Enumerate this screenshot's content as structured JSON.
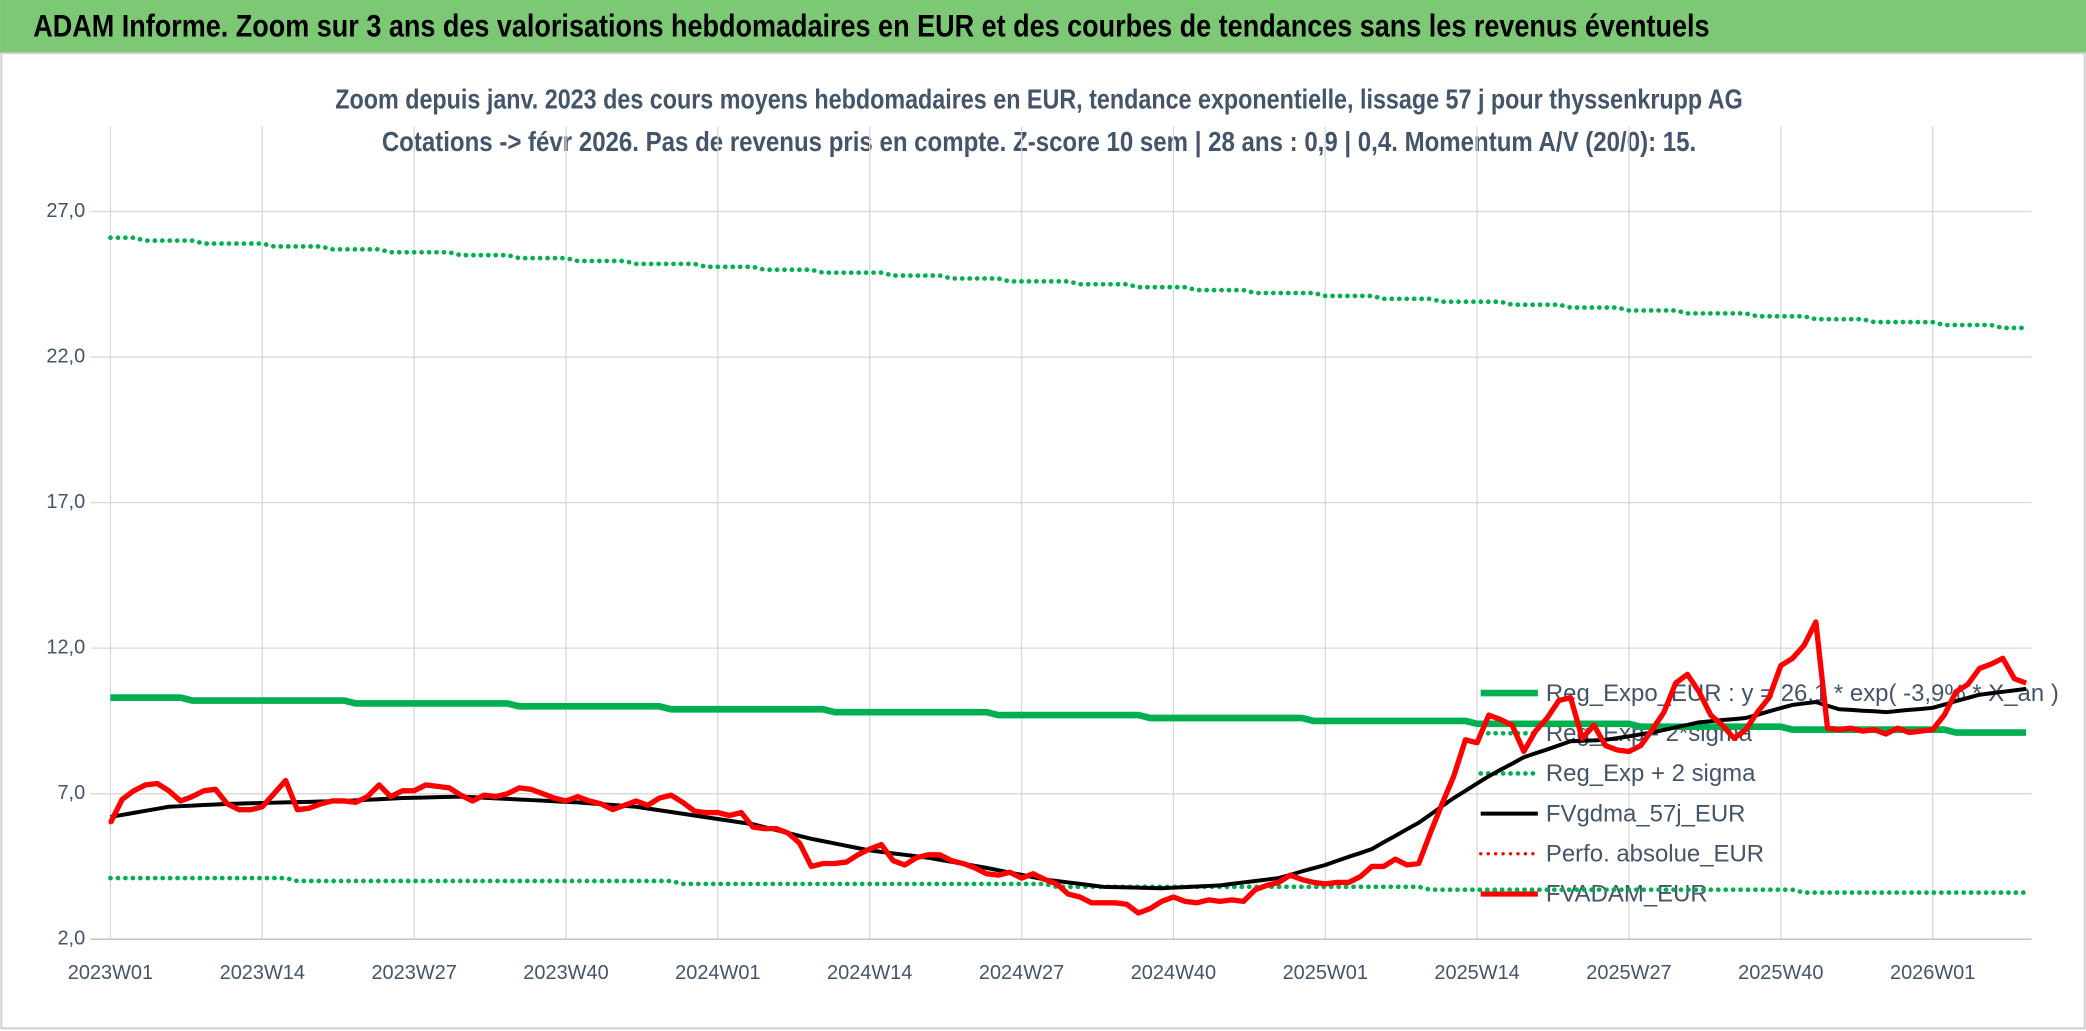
{
  "chart_data": {
    "type": "line",
    "title": "ADAM Informe. Zoom sur 3 ans des valorisations hebdomadaires en EUR et des courbes de tendances sans les revenus éventuels",
    "subtitle": [
      "Zoom depuis janv. 2023 des cours moyens hebdomadaires en EUR, tendance exponentielle, lissage 57 j pour thyssenkrupp AG",
      "Cotations -> févr 2026. Pas de revenus pris en compte. Z-score 10 sem | 28 ans : 0,9 | 0,4. Momentum A/V (20/0): 15."
    ],
    "categories": [
      "2023W01",
      null,
      null,
      null,
      null,
      null,
      null,
      null,
      null,
      null,
      null,
      null,
      null,
      "2023W14",
      null,
      null,
      null,
      null,
      null,
      null,
      null,
      null,
      null,
      null,
      null,
      null,
      "2023W27",
      null,
      null,
      null,
      null,
      null,
      null,
      null,
      null,
      null,
      null,
      null,
      null,
      "2023W40",
      null,
      null,
      null,
      null,
      null,
      null,
      null,
      null,
      null,
      null,
      null,
      null,
      "2024W01",
      null,
      null,
      null,
      null,
      null,
      null,
      null,
      null,
      null,
      null,
      null,
      null,
      "2024W14",
      null,
      null,
      null,
      null,
      null,
      null,
      null,
      null,
      null,
      null,
      null,
      null,
      "2024W27",
      null,
      null,
      null,
      null,
      null,
      null,
      null,
      null,
      null,
      null,
      null,
      null,
      "2024W40",
      null,
      null,
      null,
      null,
      null,
      null,
      null,
      null,
      null,
      null,
      null,
      null,
      "2025W01",
      null,
      null,
      null,
      null,
      null,
      null,
      null,
      null,
      null,
      null,
      null,
      null,
      "2025W14",
      null,
      null,
      null,
      null,
      null,
      null,
      null,
      null,
      null,
      null,
      null,
      null,
      "2025W27",
      null,
      null,
      null,
      null,
      null,
      null,
      null,
      null,
      null,
      null,
      null,
      null,
      "2025W40",
      null,
      null,
      null,
      null,
      null,
      null,
      null,
      null,
      null,
      null,
      null,
      null,
      "2026W01",
      null,
      null,
      null,
      null,
      null,
      null,
      null,
      null
    ],
    "ylim": [
      2,
      29
    ],
    "yticks": [
      {
        "value": 2,
        "label": "2,0"
      },
      {
        "value": 7,
        "label": "7,0"
      },
      {
        "value": 12,
        "label": "12,0"
      },
      {
        "value": 17,
        "label": "17,0"
      },
      {
        "value": 22,
        "label": "22,0"
      },
      {
        "value": 27,
        "label": "27,0"
      }
    ],
    "grid": true,
    "legend": "right",
    "series": [
      {
        "name": "Reg_Expo_EUR : y = 26,1 * exp( -3,9% * X_an )",
        "color": "#00b050",
        "style": "solid",
        "values": [
          10.3,
          10.3,
          10.3,
          10.3,
          10.3,
          10.3,
          10.3,
          10.2,
          10.2,
          10.2,
          10.2,
          10.2,
          10.2,
          10.2,
          10.2,
          10.2,
          10.2,
          10.2,
          10.2,
          10.2,
          10.2,
          10.1,
          10.1,
          10.1,
          10.1,
          10.1,
          10.1,
          10.1,
          10.1,
          10.1,
          10.1,
          10.1,
          10.1,
          10.1,
          10.1,
          10,
          10,
          10,
          10,
          10,
          10,
          10,
          10,
          10,
          10,
          10,
          10,
          10,
          9.9,
          9.9,
          9.9,
          9.9,
          9.9,
          9.9,
          9.9,
          9.9,
          9.9,
          9.9,
          9.9,
          9.9,
          9.9,
          9.9,
          9.8,
          9.8,
          9.8,
          9.8,
          9.8,
          9.8,
          9.8,
          9.8,
          9.8,
          9.8,
          9.8,
          9.8,
          9.8,
          9.8,
          9.7,
          9.7,
          9.7,
          9.7,
          9.7,
          9.7,
          9.7,
          9.7,
          9.7,
          9.7,
          9.7,
          9.7,
          9.7,
          9.6,
          9.6,
          9.6,
          9.6,
          9.6,
          9.6,
          9.6,
          9.6,
          9.6,
          9.6,
          9.6,
          9.6,
          9.6,
          9.6,
          9.5,
          9.5,
          9.5,
          9.5,
          9.5,
          9.5,
          9.5,
          9.5,
          9.5,
          9.5,
          9.5,
          9.5,
          9.5,
          9.5,
          9.4,
          9.4,
          9.4,
          9.4,
          9.4,
          9.4,
          9.4,
          9.4,
          9.4,
          9.4,
          9.4,
          9.4,
          9.4,
          9.4,
          9.3,
          9.3,
          9.3,
          9.3,
          9.3,
          9.3,
          9.3,
          9.3,
          9.3,
          9.3,
          9.3,
          9.3,
          9.3,
          9.2,
          9.2,
          9.2,
          9.2,
          9.2,
          9.2,
          9.2,
          9.2,
          9.2,
          9.2,
          9.2,
          9.2,
          9.2,
          9.2,
          9.1,
          9.1,
          9.1,
          9.1,
          9.1,
          9.1,
          9.1
        ]
      },
      {
        "name": "Reg_Exp - 2*sigma",
        "color": "#00b050",
        "style": "dotted",
        "values": [
          4.1,
          4.1,
          4.1,
          4.1,
          4.1,
          4.1,
          4.1,
          4.1,
          4.1,
          4.1,
          4.1,
          4.1,
          4.1,
          4.1,
          4.1,
          4.1,
          4,
          4,
          4,
          4,
          4,
          4,
          4,
          4,
          4,
          4,
          4,
          4,
          4,
          4,
          4,
          4,
          4,
          4,
          4,
          4,
          4,
          4,
          4,
          4,
          4,
          4,
          4,
          4,
          4,
          4,
          4,
          4,
          4,
          3.9,
          3.9,
          3.9,
          3.9,
          3.9,
          3.9,
          3.9,
          3.9,
          3.9,
          3.9,
          3.9,
          3.9,
          3.9,
          3.9,
          3.9,
          3.9,
          3.9,
          3.9,
          3.9,
          3.9,
          3.9,
          3.9,
          3.9,
          3.9,
          3.9,
          3.9,
          3.9,
          3.9,
          3.9,
          3.9,
          3.9,
          3.9,
          3.8,
          3.8,
          3.8,
          3.8,
          3.8,
          3.8,
          3.8,
          3.8,
          3.8,
          3.8,
          3.8,
          3.8,
          3.8,
          3.8,
          3.8,
          3.8,
          3.8,
          3.8,
          3.8,
          3.8,
          3.8,
          3.8,
          3.8,
          3.8,
          3.8,
          3.8,
          3.8,
          3.8,
          3.8,
          3.8,
          3.8,
          3.8,
          3.7,
          3.7,
          3.7,
          3.7,
          3.7,
          3.7,
          3.7,
          3.7,
          3.7,
          3.7,
          3.7,
          3.7,
          3.7,
          3.7,
          3.7,
          3.7,
          3.7,
          3.7,
          3.7,
          3.7,
          3.7,
          3.7,
          3.7,
          3.7,
          3.7,
          3.7,
          3.7,
          3.7,
          3.7,
          3.7,
          3.7,
          3.7,
          3.6,
          3.6,
          3.6,
          3.6,
          3.6,
          3.6,
          3.6,
          3.6,
          3.6,
          3.6,
          3.6,
          3.6,
          3.6,
          3.6,
          3.6,
          3.6,
          3.6,
          3.6,
          3.6,
          3.6
        ]
      },
      {
        "name": "Reg_Exp + 2 sigma",
        "color": "#00b050",
        "style": "dotted",
        "values": [
          26.1,
          26.1,
          26.1,
          26,
          26,
          26,
          26,
          26,
          25.9,
          25.9,
          25.9,
          25.9,
          25.9,
          25.9,
          25.8,
          25.8,
          25.8,
          25.8,
          25.8,
          25.7,
          25.7,
          25.7,
          25.7,
          25.7,
          25.6,
          25.6,
          25.6,
          25.6,
          25.6,
          25.6,
          25.5,
          25.5,
          25.5,
          25.5,
          25.5,
          25.4,
          25.4,
          25.4,
          25.4,
          25.4,
          25.3,
          25.3,
          25.3,
          25.3,
          25.3,
          25.2,
          25.2,
          25.2,
          25.2,
          25.2,
          25.2,
          25.1,
          25.1,
          25.1,
          25.1,
          25.1,
          25,
          25,
          25,
          25,
          25,
          24.9,
          24.9,
          24.9,
          24.9,
          24.9,
          24.9,
          24.8,
          24.8,
          24.8,
          24.8,
          24.8,
          24.7,
          24.7,
          24.7,
          24.7,
          24.7,
          24.6,
          24.6,
          24.6,
          24.6,
          24.6,
          24.6,
          24.5,
          24.5,
          24.5,
          24.5,
          24.5,
          24.4,
          24.4,
          24.4,
          24.4,
          24.4,
          24.3,
          24.3,
          24.3,
          24.3,
          24.3,
          24.2,
          24.2,
          24.2,
          24.2,
          24.2,
          24.2,
          24.1,
          24.1,
          24.1,
          24.1,
          24.1,
          24,
          24,
          24,
          24,
          24,
          23.9,
          23.9,
          23.9,
          23.9,
          23.9,
          23.9,
          23.8,
          23.8,
          23.8,
          23.8,
          23.8,
          23.7,
          23.7,
          23.7,
          23.7,
          23.7,
          23.6,
          23.6,
          23.6,
          23.6,
          23.6,
          23.5,
          23.5,
          23.5,
          23.5,
          23.5,
          23.5,
          23.4,
          23.4,
          23.4,
          23.4,
          23.4,
          23.3,
          23.3,
          23.3,
          23.3,
          23.3,
          23.2,
          23.2,
          23.2,
          23.2,
          23.2,
          23.2,
          23.1,
          23.1,
          23.1,
          23.1,
          23.1,
          23,
          23,
          23
        ]
      },
      {
        "name": "FVgdma_57j_EUR",
        "color": "#000000",
        "style": "solid",
        "values": [
          6.2,
          6.27,
          6.34,
          6.41,
          6.48,
          6.55,
          6.57,
          6.59,
          6.61,
          6.63,
          6.65,
          6.66,
          6.67,
          6.68,
          6.69,
          6.7,
          6.71,
          6.72,
          6.73,
          6.74,
          6.75,
          6.77,
          6.79,
          6.81,
          6.83,
          6.85,
          6.86,
          6.87,
          6.88,
          6.89,
          6.9,
          6.88,
          6.86,
          6.84,
          6.82,
          6.8,
          6.78,
          6.76,
          6.74,
          6.72,
          6.7,
          6.67,
          6.64,
          6.61,
          6.58,
          6.55,
          6.49,
          6.43,
          6.37,
          6.31,
          6.25,
          6.19,
          6.13,
          6.07,
          6.01,
          5.95,
          5.85,
          5.75,
          5.65,
          5.55,
          5.45,
          5.37,
          5.29,
          5.21,
          5.13,
          5.05,
          5,
          4.95,
          4.9,
          4.85,
          4.8,
          4.73,
          4.66,
          4.59,
          4.52,
          4.45,
          4.37,
          4.29,
          4.21,
          4.13,
          4.05,
          4,
          3.95,
          3.9,
          3.85,
          3.8,
          3.79,
          3.78,
          3.77,
          3.76,
          3.75,
          3.77,
          3.79,
          3.81,
          3.83,
          3.85,
          3.9,
          3.95,
          4,
          4.05,
          4.1,
          4.21,
          4.33,
          4.44,
          4.55,
          4.69,
          4.83,
          4.96,
          5.1,
          5.33,
          5.55,
          5.78,
          6,
          6.28,
          6.57,
          6.85,
          7.1,
          7.35,
          7.6,
          7.82,
          8.03,
          8.25,
          8.39,
          8.52,
          8.66,
          8.8,
          8.82,
          8.83,
          8.85,
          8.91,
          8.97,
          9.04,
          9.1,
          9.19,
          9.28,
          9.36,
          9.45,
          9.49,
          9.53,
          9.56,
          9.6,
          9.71,
          9.83,
          9.94,
          10.05,
          10.1,
          10.15,
          10.02,
          9.9,
          9.88,
          9.85,
          9.83,
          9.8,
          9.84,
          9.88,
          9.91,
          9.95,
          10.06,
          10.18,
          10.29,
          10.4,
          10.45,
          10.5,
          10.55,
          10.6
        ]
      },
      {
        "name": "Perfo. absolue_EUR",
        "color": "#ff0000",
        "style": "dotted",
        "values": [
          6.0,
          6.8,
          7.1,
          7.3,
          7.35,
          7.1,
          6.75,
          6.9,
          7.1,
          7.15,
          6.65,
          6.45,
          6.45,
          6.55,
          7.0,
          7.45,
          6.45,
          6.5,
          6.65,
          6.75,
          6.75,
          6.7,
          6.9,
          7.3,
          6.9,
          7.1,
          7.1,
          7.3,
          7.25,
          7.2,
          6.95,
          6.75,
          6.95,
          6.9,
          7.0,
          7.2,
          7.15,
          7.0,
          6.85,
          6.75,
          6.9,
          6.75,
          6.65,
          6.45,
          6.6,
          6.75,
          6.6,
          6.85,
          6.95,
          6.7,
          6.4,
          6.35,
          6.35,
          6.25,
          6.35,
          5.85,
          5.8,
          5.8,
          5.65,
          5.3,
          4.5,
          4.6,
          4.6,
          4.65,
          4.9,
          5.1,
          5.25,
          4.7,
          4.55,
          4.8,
          4.9,
          4.9,
          4.7,
          4.6,
          4.45,
          4.25,
          4.2,
          4.3,
          4.1,
          4.25,
          4.05,
          3.9,
          3.55,
          3.45,
          3.25,
          3.25,
          3.25,
          3.2,
          2.9,
          3.05,
          3.3,
          3.45,
          3.3,
          3.25,
          3.35,
          3.3,
          3.35,
          3.3,
          3.7,
          3.85,
          3.95,
          4.2,
          4.05,
          3.95,
          3.9,
          3.95,
          3.95,
          4.15,
          4.5,
          4.5,
          4.75,
          4.55,
          4.6,
          5.65,
          6.65,
          7.6,
          8.85,
          8.75,
          9.7,
          9.55,
          9.35,
          8.45,
          9.15,
          9.6,
          10.2,
          10.3,
          8.9,
          9.35,
          8.65,
          8.5,
          8.45,
          8.65,
          9.2,
          9.8,
          10.8,
          11.1,
          10.5,
          9.7,
          9.35,
          8.9,
          9.2,
          9.8,
          10.3,
          11.4,
          11.65,
          12.1,
          12.9,
          9.25,
          9.2,
          9.25,
          9.15,
          9.2,
          9.05,
          9.25,
          9.1,
          9.15,
          9.2,
          9.7,
          10.5,
          10.75,
          11.3,
          11.45,
          11.65,
          10.95,
          10.8
        ]
      },
      {
        "name": "FVADAM_EUR",
        "color": "#ff0000",
        "style": "solid",
        "values": [
          6.0,
          6.8,
          7.1,
          7.3,
          7.35,
          7.1,
          6.75,
          6.9,
          7.1,
          7.15,
          6.65,
          6.45,
          6.45,
          6.55,
          7.0,
          7.45,
          6.45,
          6.5,
          6.65,
          6.75,
          6.75,
          6.7,
          6.9,
          7.3,
          6.9,
          7.1,
          7.1,
          7.3,
          7.25,
          7.2,
          6.95,
          6.75,
          6.95,
          6.9,
          7.0,
          7.2,
          7.15,
          7.0,
          6.85,
          6.75,
          6.9,
          6.75,
          6.65,
          6.45,
          6.6,
          6.75,
          6.6,
          6.85,
          6.95,
          6.7,
          6.4,
          6.35,
          6.35,
          6.25,
          6.35,
          5.85,
          5.8,
          5.8,
          5.65,
          5.3,
          4.5,
          4.6,
          4.6,
          4.65,
          4.9,
          5.1,
          5.25,
          4.7,
          4.55,
          4.8,
          4.9,
          4.9,
          4.7,
          4.6,
          4.45,
          4.25,
          4.2,
          4.3,
          4.1,
          4.25,
          4.05,
          3.9,
          3.55,
          3.45,
          3.25,
          3.25,
          3.25,
          3.2,
          2.9,
          3.05,
          3.3,
          3.45,
          3.3,
          3.25,
          3.35,
          3.3,
          3.35,
          3.3,
          3.7,
          3.85,
          3.95,
          4.2,
          4.05,
          3.95,
          3.9,
          3.95,
          3.95,
          4.15,
          4.5,
          4.5,
          4.75,
          4.55,
          4.6,
          5.65,
          6.65,
          7.6,
          8.85,
          8.75,
          9.7,
          9.55,
          9.35,
          8.45,
          9.15,
          9.6,
          10.2,
          10.3,
          8.9,
          9.35,
          8.65,
          8.5,
          8.45,
          8.65,
          9.2,
          9.8,
          10.8,
          11.1,
          10.5,
          9.7,
          9.35,
          8.9,
          9.2,
          9.8,
          10.3,
          11.4,
          11.65,
          12.1,
          12.9,
          9.25,
          9.2,
          9.25,
          9.15,
          9.2,
          9.05,
          9.25,
          9.1,
          9.15,
          9.2,
          9.7,
          10.5,
          10.75,
          11.3,
          11.45,
          11.65,
          10.95,
          10.8
        ]
      }
    ]
  }
}
